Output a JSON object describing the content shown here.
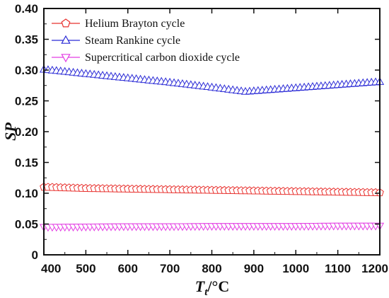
{
  "chart_data": {
    "type": "line",
    "xlabel": {
      "main": "T",
      "sub": "t",
      "unit": "/°C"
    },
    "ylabel": "SP",
    "xlim": [
      400,
      1200
    ],
    "ylim": [
      0,
      0.4
    ],
    "xticks": [
      {
        "value": 400,
        "label": "400"
      },
      {
        "value": 500,
        "label": "500"
      },
      {
        "value": 600,
        "label": "600"
      },
      {
        "value": 700,
        "label": "700"
      },
      {
        "value": 800,
        "label": "800"
      },
      {
        "value": 900,
        "label": "900"
      },
      {
        "value": 1000,
        "label": "1000"
      },
      {
        "value": 1100,
        "label": "1100"
      },
      {
        "value": 1200,
        "label": "1200"
      }
    ],
    "yticks": [
      {
        "value": 0,
        "label": "0"
      },
      {
        "value": 0.05,
        "label": "0.05"
      },
      {
        "value": 0.1,
        "label": "0.10"
      },
      {
        "value": 0.15,
        "label": "0.15"
      },
      {
        "value": 0.2,
        "label": "0.20"
      },
      {
        "value": 0.25,
        "label": "0.25"
      },
      {
        "value": 0.3,
        "label": "0.30"
      },
      {
        "value": 0.35,
        "label": "0.35"
      },
      {
        "value": 0.4,
        "label": "0.40"
      }
    ],
    "grid": false,
    "legend_position": "top-left",
    "series": [
      {
        "name": "Helium Brayton cycle",
        "color": "#e8322f",
        "marker": "pentagon",
        "x": [
          400,
          500,
          600,
          700,
          800,
          900,
          1000,
          1100,
          1200
        ],
        "y": [
          0.11,
          0.108,
          0.107,
          0.106,
          0.105,
          0.104,
          0.103,
          0.102,
          0.101
        ]
      },
      {
        "name": "Steam Rankine cycle",
        "color": "#2b2bd6",
        "marker": "triangle-up",
        "x": [
          400,
          500,
          600,
          700,
          800,
          880,
          1000,
          1100,
          1200
        ],
        "y": [
          0.301,
          0.294,
          0.287,
          0.28,
          0.272,
          0.265,
          0.271,
          0.276,
          0.281
        ]
      },
      {
        "name": "Supercritical carbon dioxide cycle",
        "color": "#e33de3",
        "marker": "triangle-down",
        "x": [
          400,
          500,
          600,
          700,
          800,
          900,
          1000,
          1100,
          1200
        ],
        "y": [
          0.045,
          0.0455,
          0.046,
          0.046,
          0.0465,
          0.0465,
          0.0465,
          0.047,
          0.047
        ]
      }
    ]
  }
}
